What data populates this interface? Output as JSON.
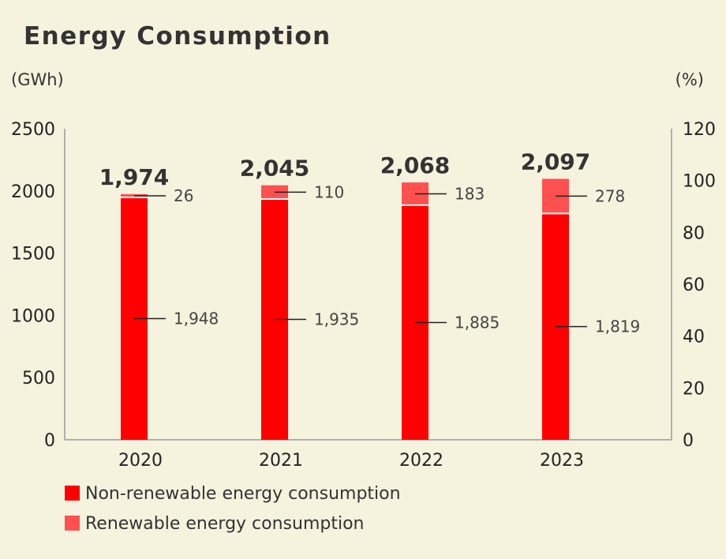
{
  "chart_data": {
    "type": "bar",
    "stacked": true,
    "title": "Energy Consumption",
    "y_unit_left": "(GWh)",
    "y_unit_right": "(%)",
    "categories": [
      "2020",
      "2021",
      "2022",
      "2023"
    ],
    "series": [
      {
        "name": "Non-renewable energy consumption",
        "color": "#ff0000",
        "values": [
          1948,
          1935,
          1885,
          1819
        ],
        "labels": [
          "1,948",
          "1,935",
          "1,885",
          "1,819"
        ]
      },
      {
        "name": "Renewable energy consumption",
        "color": "#ff5050",
        "values": [
          26,
          110,
          183,
          278
        ],
        "labels": [
          "26",
          "110",
          "183",
          "278"
        ]
      }
    ],
    "totals": [
      "1,974",
      "2,045",
      "2,068",
      "2,097"
    ],
    "ylim_left": [
      0,
      2500
    ],
    "yticks_left": [
      "0",
      "500",
      "1000",
      "1500",
      "2000",
      "2500"
    ],
    "ylim_right": [
      0,
      120
    ],
    "yticks_right": [
      "0",
      "20",
      "40",
      "60",
      "80",
      "100",
      "120"
    ],
    "grid": false,
    "legend_position": "bottom-left"
  }
}
